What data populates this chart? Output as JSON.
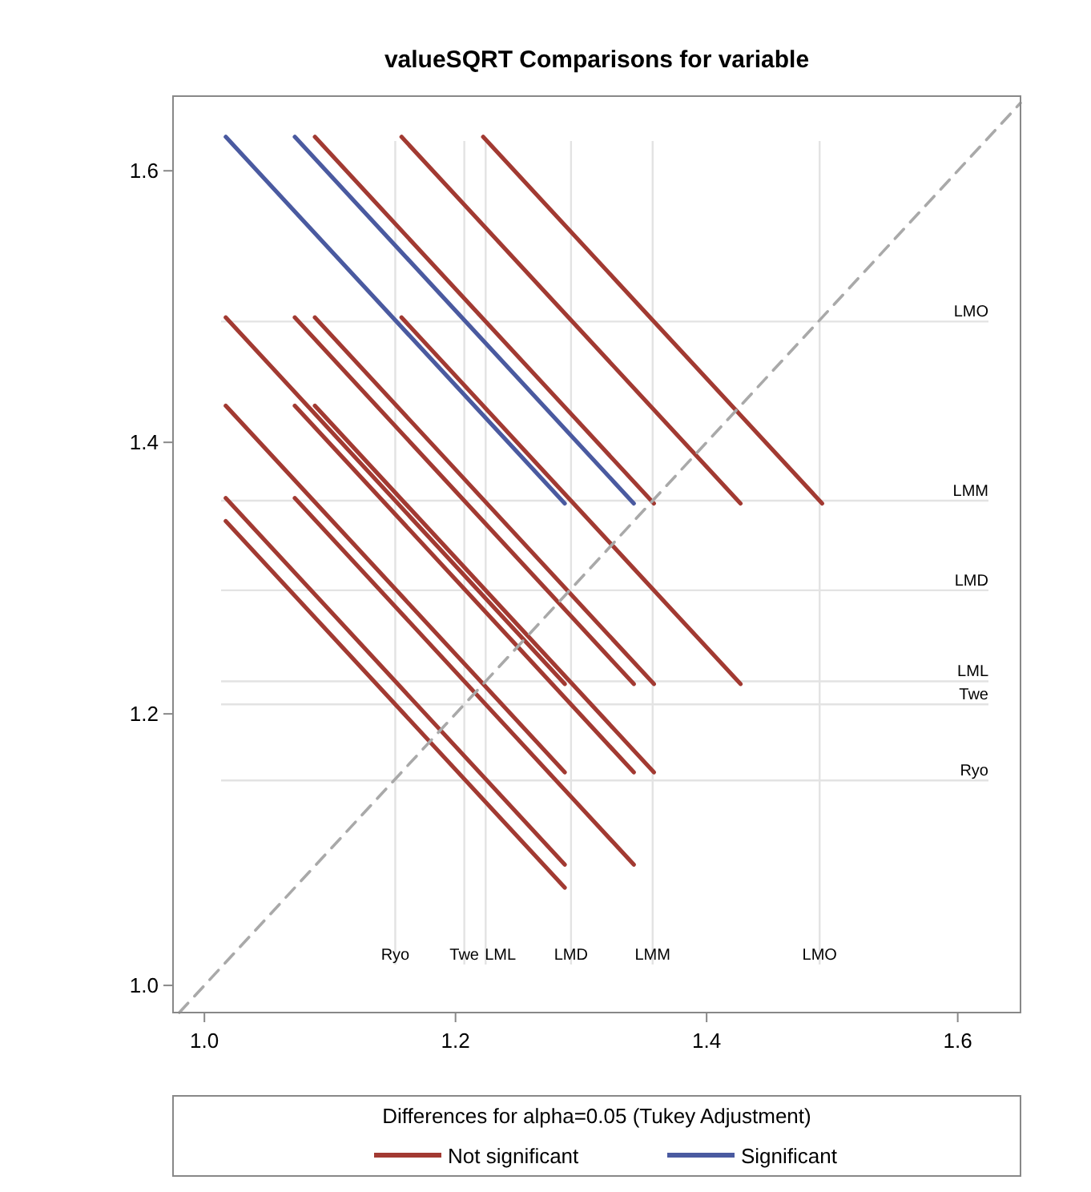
{
  "chart_data": {
    "type": "line",
    "title": "valueSQRT Comparisons for variable",
    "legend_title": "Differences for alpha=0.05 (Tukey Adjustment)",
    "legend": "bottom",
    "grid": false,
    "marker": "none",
    "xlim": [
      0.975,
      1.65
    ],
    "ylim": [
      0.98,
      1.655
    ],
    "xticks": [
      {
        "value": 1,
        "label": "1.0"
      },
      {
        "value": 1.2,
        "label": "1.2"
      },
      {
        "value": 1.4,
        "label": "1.4"
      },
      {
        "value": 1.6,
        "label": "1.6"
      }
    ],
    "yticks": [
      {
        "value": 1,
        "label": "1.0"
      },
      {
        "value": 1.2,
        "label": "1.2"
      },
      {
        "value": 1.4,
        "label": "1.4"
      },
      {
        "value": 1.6,
        "label": "1.6"
      }
    ],
    "series": [
      {
        "name": "Not significant",
        "color": "#a23a32",
        "line_style": "solid",
        "x": [
          1.088,
          1.358
        ],
        "values": [
          1.625,
          1.355
        ]
      },
      {
        "color": "#a23a32",
        "line_style": "solid",
        "x": [
          1.157,
          1.427
        ],
        "values": [
          1.625,
          1.355
        ]
      },
      {
        "color": "#a23a32",
        "line_style": "solid",
        "x": [
          1.222,
          1.492
        ],
        "values": [
          1.625,
          1.355
        ]
      },
      {
        "color": "#a23a32",
        "line_style": "solid",
        "x": [
          1.017,
          1.287
        ],
        "values": [
          1.492,
          1.222
        ]
      },
      {
        "color": "#a23a32",
        "line_style": "solid",
        "x": [
          1.072,
          1.342
        ],
        "values": [
          1.492,
          1.222
        ]
      },
      {
        "color": "#a23a32",
        "line_style": "solid",
        "x": [
          1.088,
          1.358
        ],
        "values": [
          1.492,
          1.222
        ]
      },
      {
        "color": "#a23a32",
        "line_style": "solid",
        "x": [
          1.157,
          1.427
        ],
        "values": [
          1.492,
          1.222
        ]
      },
      {
        "color": "#a23a32",
        "line_style": "solid",
        "x": [
          1.017,
          1.287
        ],
        "values": [
          1.427,
          1.157
        ]
      },
      {
        "color": "#a23a32",
        "line_style": "solid",
        "x": [
          1.072,
          1.342
        ],
        "values": [
          1.427,
          1.157
        ]
      },
      {
        "color": "#a23a32",
        "line_style": "solid",
        "x": [
          1.088,
          1.358
        ],
        "values": [
          1.427,
          1.157
        ]
      },
      {
        "color": "#a23a32",
        "line_style": "solid",
        "x": [
          1.017,
          1.287
        ],
        "values": [
          1.359,
          1.089
        ]
      },
      {
        "color": "#a23a32",
        "line_style": "solid",
        "x": [
          1.072,
          1.342
        ],
        "values": [
          1.359,
          1.089
        ]
      },
      {
        "color": "#a23a32",
        "line_style": "solid",
        "x": [
          1.017,
          1.287
        ],
        "values": [
          1.342,
          1.072
        ]
      },
      {
        "name": "Significant",
        "color": "#4a5aa0",
        "line_style": "solid",
        "x": [
          1.017,
          1.287
        ],
        "values": [
          1.625,
          1.355
        ]
      },
      {
        "color": "#4a5aa0",
        "line_style": "solid",
        "x": [
          1.072,
          1.342
        ],
        "values": [
          1.625,
          1.355
        ]
      },
      {
        "color": "#a9a9a9",
        "line_style": "dashed",
        "x": [
          0.98,
          1.65
        ],
        "values": [
          0.98,
          1.65
        ]
      }
    ],
    "ref_lines": [
      {
        "axis": "x",
        "value": 1.152,
        "label": "Ryo",
        "color": "#e3e3e3"
      },
      {
        "axis": "x",
        "value": 1.207,
        "label": "Twe",
        "color": "#e3e3e3"
      },
      {
        "axis": "x",
        "value": 1.224,
        "label": "LML",
        "color": "#e3e3e3"
      },
      {
        "axis": "x",
        "value": 1.292,
        "label": "LMD",
        "color": "#e3e3e3"
      },
      {
        "axis": "x",
        "value": 1.357,
        "label": "LMM",
        "color": "#e3e3e3"
      },
      {
        "axis": "x",
        "value": 1.49,
        "label": "LMO",
        "color": "#e3e3e3"
      },
      {
        "axis": "y",
        "value": 1.151,
        "label": "Ryo",
        "color": "#e3e3e3"
      },
      {
        "axis": "y",
        "value": 1.207,
        "label": "Twe",
        "color": "#e3e3e3"
      },
      {
        "axis": "y",
        "value": 1.224,
        "label": "LML",
        "color": "#e3e3e3"
      },
      {
        "axis": "y",
        "value": 1.291,
        "label": "LMD",
        "color": "#e3e3e3"
      },
      {
        "axis": "y",
        "value": 1.357,
        "label": "LMM",
        "color": "#e3e3e3"
      },
      {
        "axis": "y",
        "value": 1.489,
        "label": "LMO",
        "color": "#e3e3e3"
      }
    ]
  }
}
